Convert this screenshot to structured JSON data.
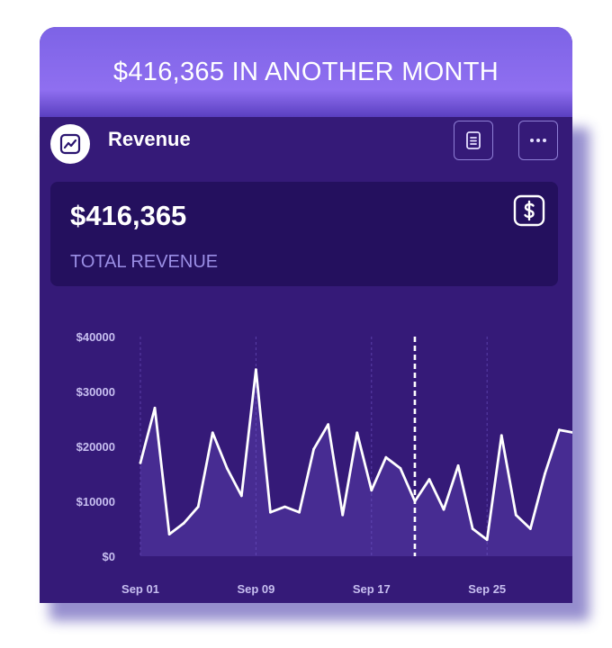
{
  "banner": {
    "text": "$416,365 IN ANOTHER MONTH"
  },
  "widget": {
    "title": "Revenue",
    "logo_icon": "chart-line-icon",
    "actions": [
      {
        "name": "document-icon"
      },
      {
        "name": "more-options-icon"
      }
    ]
  },
  "summary": {
    "value": "$416,365",
    "label": "TOTAL REVENUE",
    "icon": "dollar-icon"
  },
  "colors": {
    "banner": "#8a6ef0",
    "background": "#351a78",
    "panel": "#24105e",
    "line": "#ffffff",
    "label": "#9b8fe6"
  },
  "chart_data": {
    "type": "area",
    "x": [
      "Sep 01",
      "Sep 02",
      "Sep 03",
      "Sep 04",
      "Sep 05",
      "Sep 06",
      "Sep 07",
      "Sep 08",
      "Sep 09",
      "Sep 10",
      "Sep 11",
      "Sep 12",
      "Sep 13",
      "Sep 14",
      "Sep 15",
      "Sep 16",
      "Sep 17",
      "Sep 18",
      "Sep 19",
      "Sep 20",
      "Sep 21",
      "Sep 22",
      "Sep 23",
      "Sep 24",
      "Sep 25",
      "Sep 26",
      "Sep 27",
      "Sep 28",
      "Sep 29",
      "Sep 30",
      "Oct 01"
    ],
    "series": [
      {
        "values": [
          17000,
          27000,
          4000,
          6000,
          9000,
          22500,
          16000,
          11000,
          34000,
          8000,
          9000,
          8000,
          19500,
          24000,
          7500,
          22500,
          12000,
          18000,
          16000,
          10000,
          14000,
          8500,
          16500,
          5000,
          3000,
          22000,
          7500,
          5000,
          15000,
          23000,
          22500
        ]
      }
    ],
    "xticks": [
      "Sep 01",
      "Sep 09",
      "Sep 17",
      "Sep 25"
    ],
    "yticks": [
      "$0",
      "$10000",
      "$20000",
      "$30000",
      "$40000"
    ],
    "ylim": [
      0,
      40000
    ],
    "highlight": "Sep 20",
    "grid": "vertical-dashed"
  }
}
